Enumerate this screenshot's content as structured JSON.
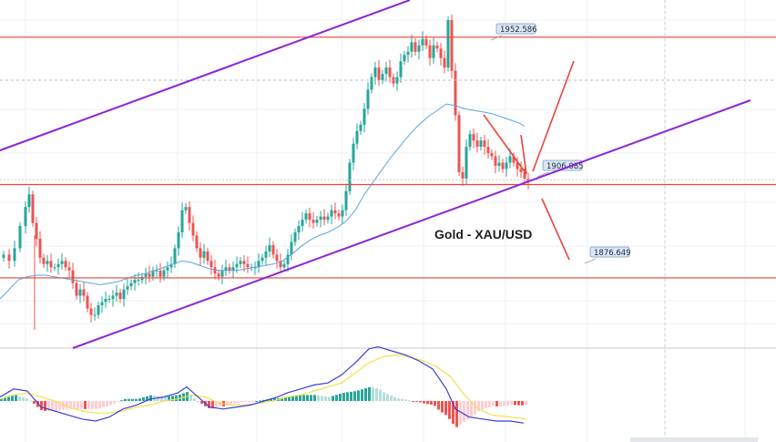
{
  "chart_data": {
    "type": "candlestick",
    "title": "Gold - XAU/USD",
    "ylim": [
      1852,
      1962
    ],
    "grid": true,
    "levels": [
      {
        "label": "1952.586",
        "value": 1952.586
      },
      {
        "label": "1906.085",
        "value": 1906.085
      },
      {
        "label": "1876.649",
        "value": 1876.649
      }
    ],
    "dotted_level": 1939.0,
    "moving_average": [
      [
        0,
        1870
      ],
      [
        10,
        1873
      ],
      [
        20,
        1876
      ],
      [
        30,
        1877
      ],
      [
        40,
        1877.5
      ],
      [
        50,
        1877.5
      ],
      [
        60,
        1877
      ],
      [
        70,
        1876.5
      ],
      [
        80,
        1876
      ],
      [
        90,
        1875.5
      ],
      [
        100,
        1875
      ],
      [
        110,
        1874.5
      ],
      [
        120,
        1875
      ],
      [
        130,
        1875.5
      ],
      [
        140,
        1876.5
      ],
      [
        150,
        1877.5
      ],
      [
        160,
        1878
      ],
      [
        170,
        1879
      ],
      [
        180,
        1880
      ],
      [
        190,
        1881
      ],
      [
        200,
        1882
      ],
      [
        210,
        1881.5
      ],
      [
        220,
        1880.5
      ],
      [
        230,
        1879.5
      ],
      [
        240,
        1879
      ],
      [
        250,
        1879
      ],
      [
        260,
        1879
      ],
      [
        270,
        1879.5
      ],
      [
        280,
        1880
      ],
      [
        290,
        1880.5
      ],
      [
        300,
        1881
      ],
      [
        310,
        1882
      ],
      [
        320,
        1884
      ],
      [
        330,
        1886.5
      ],
      [
        340,
        1888.5
      ],
      [
        350,
        1890
      ],
      [
        360,
        1891
      ],
      [
        370,
        1892.5
      ],
      [
        380,
        1894.5
      ],
      [
        390,
        1898
      ],
      [
        400,
        1903
      ],
      [
        410,
        1907
      ],
      [
        420,
        1911
      ],
      [
        430,
        1915
      ],
      [
        440,
        1918.5
      ],
      [
        450,
        1922
      ],
      [
        460,
        1925
      ],
      [
        470,
        1927.5
      ],
      [
        480,
        1929.5
      ],
      [
        490,
        1931.5
      ],
      [
        500,
        1931
      ],
      [
        510,
        1930
      ],
      [
        520,
        1929.5
      ],
      [
        530,
        1929
      ],
      [
        540,
        1928.5
      ],
      [
        550,
        1927.5
      ],
      [
        560,
        1926.5
      ],
      [
        570,
        1925.5
      ],
      [
        576,
        1924.5
      ]
    ],
    "candles_close": [
      [
        2,
        1884
      ],
      [
        8,
        1882
      ],
      [
        14,
        1886
      ],
      [
        20,
        1893
      ],
      [
        26,
        1899
      ],
      [
        30,
        1903
      ],
      [
        34,
        1894
      ],
      [
        38,
        1889
      ],
      [
        42,
        1883
      ],
      [
        46,
        1881
      ],
      [
        50,
        1882
      ],
      [
        54,
        1880
      ],
      [
        58,
        1880
      ],
      [
        62,
        1881
      ],
      [
        66,
        1882
      ],
      [
        70,
        1880
      ],
      [
        74,
        1879
      ],
      [
        78,
        1875
      ],
      [
        82,
        1871
      ],
      [
        86,
        1873
      ],
      [
        90,
        1871
      ],
      [
        94,
        1867
      ],
      [
        98,
        1865
      ],
      [
        102,
        1865
      ],
      [
        106,
        1868
      ],
      [
        110,
        1869
      ],
      [
        114,
        1870
      ],
      [
        118,
        1870
      ],
      [
        122,
        1871
      ],
      [
        126,
        1872
      ],
      [
        130,
        1870
      ],
      [
        134,
        1873
      ],
      [
        138,
        1874
      ],
      [
        142,
        1875
      ],
      [
        146,
        1876
      ],
      [
        150,
        1876
      ],
      [
        154,
        1877
      ],
      [
        158,
        1878
      ],
      [
        162,
        1877
      ],
      [
        166,
        1879
      ],
      [
        170,
        1879
      ],
      [
        174,
        1877
      ],
      [
        178,
        1879
      ],
      [
        182,
        1880
      ],
      [
        186,
        1881
      ],
      [
        190,
        1886
      ],
      [
        194,
        1891
      ],
      [
        198,
        1898
      ],
      [
        202,
        1899
      ],
      [
        206,
        1894
      ],
      [
        210,
        1890
      ],
      [
        214,
        1886
      ],
      [
        218,
        1883
      ],
      [
        222,
        1885
      ],
      [
        226,
        1882
      ],
      [
        230,
        1880
      ],
      [
        234,
        1878
      ],
      [
        238,
        1877
      ],
      [
        242,
        1879
      ],
      [
        246,
        1880
      ],
      [
        250,
        1879
      ],
      [
        254,
        1880
      ],
      [
        258,
        1881
      ],
      [
        262,
        1882
      ],
      [
        266,
        1881
      ],
      [
        270,
        1880
      ],
      [
        274,
        1880
      ],
      [
        278,
        1880
      ],
      [
        282,
        1882
      ],
      [
        286,
        1883
      ],
      [
        290,
        1885
      ],
      [
        294,
        1887
      ],
      [
        298,
        1884
      ],
      [
        302,
        1882
      ],
      [
        306,
        1880
      ],
      [
        310,
        1881
      ],
      [
        314,
        1884
      ],
      [
        318,
        1888
      ],
      [
        322,
        1891
      ],
      [
        326,
        1893
      ],
      [
        330,
        1895
      ],
      [
        334,
        1897
      ],
      [
        338,
        1895
      ],
      [
        342,
        1894
      ],
      [
        346,
        1895
      ],
      [
        350,
        1896
      ],
      [
        354,
        1895
      ],
      [
        358,
        1896
      ],
      [
        362,
        1898
      ],
      [
        366,
        1897
      ],
      [
        370,
        1896
      ],
      [
        374,
        1898
      ],
      [
        378,
        1904
      ],
      [
        382,
        1913
      ],
      [
        386,
        1919
      ],
      [
        390,
        1923
      ],
      [
        394,
        1925
      ],
      [
        398,
        1930
      ],
      [
        402,
        1936
      ],
      [
        406,
        1940
      ],
      [
        410,
        1943
      ],
      [
        414,
        1939
      ],
      [
        418,
        1941
      ],
      [
        422,
        1943
      ],
      [
        426,
        1940
      ],
      [
        430,
        1938
      ],
      [
        434,
        1940
      ],
      [
        438,
        1945
      ],
      [
        442,
        1947
      ],
      [
        446,
        1948
      ],
      [
        450,
        1951
      ],
      [
        454,
        1948
      ],
      [
        458,
        1950
      ],
      [
        462,
        1952
      ],
      [
        466,
        1950
      ],
      [
        470,
        1946
      ],
      [
        474,
        1950
      ],
      [
        478,
        1949
      ],
      [
        482,
        1946
      ],
      [
        486,
        1943
      ],
      [
        490,
        1958
      ],
      [
        494,
        1942
      ],
      [
        498,
        1928
      ],
      [
        502,
        1910
      ],
      [
        506,
        1908
      ],
      [
        510,
        1918
      ],
      [
        514,
        1922
      ],
      [
        518,
        1920
      ],
      [
        522,
        1918
      ],
      [
        526,
        1920
      ],
      [
        530,
        1918
      ],
      [
        534,
        1916
      ],
      [
        538,
        1915
      ],
      [
        542,
        1912
      ],
      [
        546,
        1913
      ],
      [
        550,
        1911
      ],
      [
        554,
        1913
      ],
      [
        558,
        1915
      ],
      [
        562,
        1913
      ],
      [
        566,
        1911
      ],
      [
        570,
        1910
      ],
      [
        574,
        1908
      ],
      [
        578,
        1907
      ]
    ],
    "annotations": [
      "rising channel",
      "falling wedge",
      "bullish target arrow",
      "bearish target arrow"
    ],
    "macd_line": [
      [
        0,
        0.2
      ],
      [
        15,
        0.6
      ],
      [
        30,
        0.5
      ],
      [
        45,
        -0.3
      ],
      [
        60,
        -0.5
      ],
      [
        75,
        -0.7
      ],
      [
        90,
        -0.9
      ],
      [
        105,
        -1.0
      ],
      [
        120,
        -0.8
      ],
      [
        135,
        -0.4
      ],
      [
        150,
        -0.2
      ],
      [
        165,
        0.1
      ],
      [
        180,
        0.2
      ],
      [
        195,
        0.4
      ],
      [
        205,
        0.7
      ],
      [
        215,
        0.3
      ],
      [
        230,
        -0.3
      ],
      [
        245,
        -0.4
      ],
      [
        260,
        -0.3
      ],
      [
        275,
        -0.2
      ],
      [
        290,
        0.0
      ],
      [
        305,
        0.2
      ],
      [
        315,
        0.4
      ],
      [
        330,
        0.6
      ],
      [
        345,
        0.8
      ],
      [
        360,
        0.9
      ],
      [
        375,
        1.3
      ],
      [
        390,
        1.9
      ],
      [
        405,
        2.6
      ],
      [
        415,
        2.7
      ],
      [
        430,
        2.5
      ],
      [
        445,
        2.3
      ],
      [
        460,
        2.0
      ],
      [
        475,
        1.6
      ],
      [
        490,
        0.6
      ],
      [
        500,
        -0.4
      ],
      [
        515,
        -0.8
      ],
      [
        530,
        -0.9
      ],
      [
        545,
        -1.0
      ],
      [
        560,
        -1.0
      ],
      [
        575,
        -1.1
      ]
    ],
    "signal_line": [
      [
        0,
        0.1
      ],
      [
        15,
        0.3
      ],
      [
        30,
        0.4
      ],
      [
        45,
        0.2
      ],
      [
        60,
        0.0
      ],
      [
        75,
        -0.3
      ],
      [
        90,
        -0.5
      ],
      [
        105,
        -0.6
      ],
      [
        120,
        -0.6
      ],
      [
        135,
        -0.5
      ],
      [
        150,
        -0.3
      ],
      [
        165,
        -0.2
      ],
      [
        180,
        0.0
      ],
      [
        195,
        0.1
      ],
      [
        210,
        0.3
      ],
      [
        225,
        0.2
      ],
      [
        240,
        -0.1
      ],
      [
        255,
        -0.2
      ],
      [
        270,
        -0.2
      ],
      [
        285,
        -0.1
      ],
      [
        300,
        0.0
      ],
      [
        315,
        0.2
      ],
      [
        330,
        0.3
      ],
      [
        345,
        0.5
      ],
      [
        360,
        0.7
      ],
      [
        375,
        0.9
      ],
      [
        390,
        1.4
      ],
      [
        405,
        1.9
      ],
      [
        420,
        2.2
      ],
      [
        435,
        2.3
      ],
      [
        450,
        2.2
      ],
      [
        465,
        2.0
      ],
      [
        480,
        1.7
      ],
      [
        495,
        1.2
      ],
      [
        510,
        0.3
      ],
      [
        525,
        -0.4
      ],
      [
        540,
        -0.7
      ],
      [
        560,
        -0.8
      ],
      [
        578,
        -0.9
      ]
    ]
  }
}
